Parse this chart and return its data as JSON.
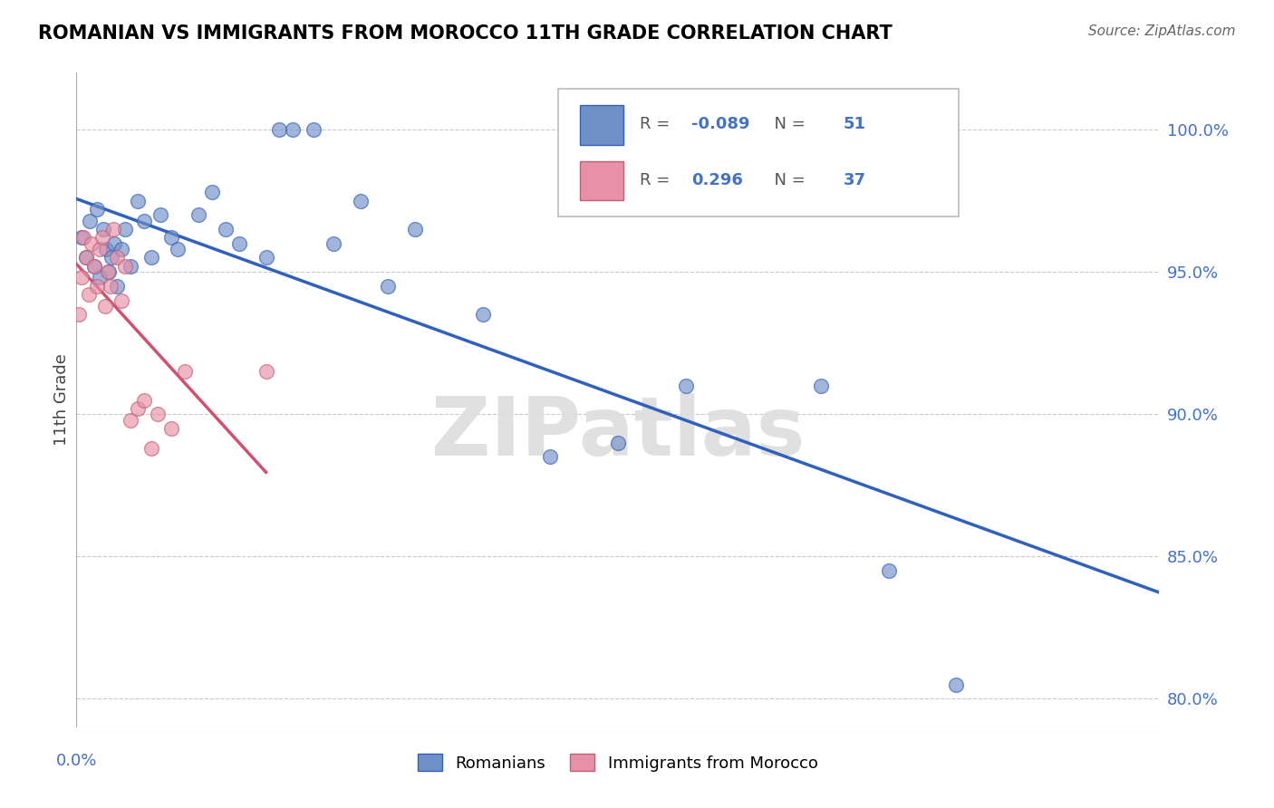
{
  "title": "ROMANIAN VS IMMIGRANTS FROM MOROCCO 11TH GRADE CORRELATION CHART",
  "source": "Source: ZipAtlas.com",
  "ylabel": "11th Grade",
  "xlim": [
    0.0,
    80.0
  ],
  "ylim": [
    79.0,
    102.0
  ],
  "yticks": [
    80.0,
    85.0,
    90.0,
    95.0,
    100.0
  ],
  "ytick_labels": [
    "80.0%",
    "85.0%",
    "90.0%",
    "95.0%",
    "100.0%"
  ],
  "blue_R": -0.089,
  "blue_N": 51,
  "pink_R": 0.296,
  "pink_N": 37,
  "blue_color": "#7090C8",
  "pink_color": "#E890A8",
  "blue_edge_color": "#3060B8",
  "pink_edge_color": "#C06070",
  "blue_line_color": "#3060C0",
  "pink_line_color": "#D05070",
  "watermark": "ZIPatlas",
  "blue_x": [
    0.4,
    0.7,
    1.0,
    1.3,
    1.5,
    1.7,
    2.0,
    2.2,
    2.4,
    2.6,
    2.8,
    3.0,
    3.3,
    3.6,
    4.0,
    4.5,
    5.0,
    5.5,
    6.2,
    7.0,
    7.5,
    9.0,
    10.0,
    11.0,
    12.0,
    14.0,
    15.0,
    16.0,
    17.5,
    19.0,
    21.0,
    23.0,
    25.0,
    30.0,
    35.0,
    40.0,
    45.0,
    55.0,
    60.0,
    65.0
  ],
  "blue_y": [
    96.2,
    95.5,
    96.8,
    95.2,
    97.2,
    94.8,
    96.5,
    95.8,
    95.0,
    95.5,
    96.0,
    94.5,
    95.8,
    96.5,
    95.2,
    97.5,
    96.8,
    95.5,
    97.0,
    96.2,
    95.8,
    97.0,
    97.8,
    96.5,
    96.0,
    95.5,
    100.0,
    100.0,
    100.0,
    96.0,
    97.5,
    94.5,
    96.5,
    93.5,
    88.5,
    89.0,
    91.0,
    91.0,
    84.5,
    80.5
  ],
  "pink_x": [
    0.2,
    0.4,
    0.5,
    0.7,
    0.9,
    1.1,
    1.3,
    1.5,
    1.7,
    1.9,
    2.1,
    2.3,
    2.5,
    2.7,
    3.0,
    3.3,
    3.6,
    4.0,
    4.5,
    5.0,
    5.5,
    6.0,
    7.0,
    8.0,
    14.0
  ],
  "pink_y": [
    93.5,
    94.8,
    96.2,
    95.5,
    94.2,
    96.0,
    95.2,
    94.5,
    95.8,
    96.2,
    93.8,
    95.0,
    94.5,
    96.5,
    95.5,
    94.0,
    95.2,
    89.8,
    90.2,
    90.5,
    88.8,
    90.0,
    89.5,
    91.5,
    91.5
  ]
}
